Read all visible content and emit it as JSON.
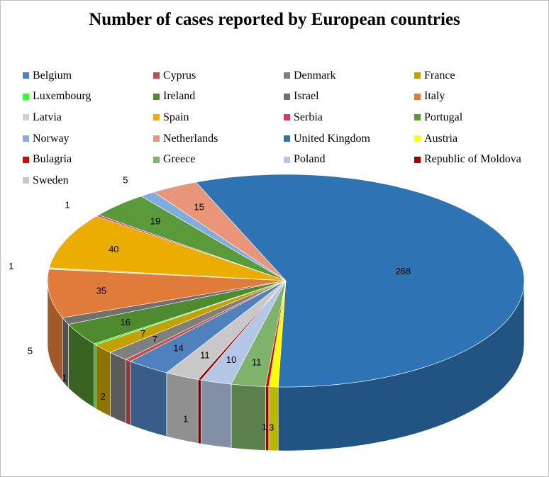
{
  "chart_data": {
    "type": "pie",
    "title": "Number of cases reported by European countries",
    "legend_position": "top",
    "categories": [
      "Belgium",
      "Cyprus",
      "Denmark",
      "France",
      "Luxembourg",
      "Ireland",
      "Israel",
      "Italy",
      "Latvia",
      "Spain",
      "Serbia",
      "Portugal",
      "Norway",
      "Netherlands",
      "United Kingdom",
      "Austria",
      "Bulagria",
      "Greece",
      "Poland",
      "Republic of Moldova",
      "Sweden"
    ],
    "values": [
      14,
      2,
      7,
      7,
      1,
      16,
      5,
      35,
      1,
      40,
      1,
      19,
      5,
      15,
      268,
      3,
      1,
      11,
      10,
      1,
      11
    ],
    "colors": [
      "#4F81BD",
      "#C0504D",
      "#7F7F7F",
      "#C4A000",
      "#33FF33",
      "#4E8A2E",
      "#707070",
      "#E07B39",
      "#D0D0D0",
      "#EBAE00",
      "#E0307A",
      "#5A9A3A",
      "#7FAEDC",
      "#E8957A",
      "#2E74B5",
      "#FFFF00",
      "#E00000",
      "#7FB26A",
      "#B4C7E7",
      "#9E0000",
      "#C8C8C8"
    ],
    "data_labels": [
      "14",
      "2",
      "7",
      "7",
      "1",
      "16",
      "5",
      "35",
      "1",
      "40",
      "1",
      "19",
      "5",
      "15",
      "268",
      "3",
      "1",
      "11",
      "10",
      "1",
      "11"
    ]
  }
}
